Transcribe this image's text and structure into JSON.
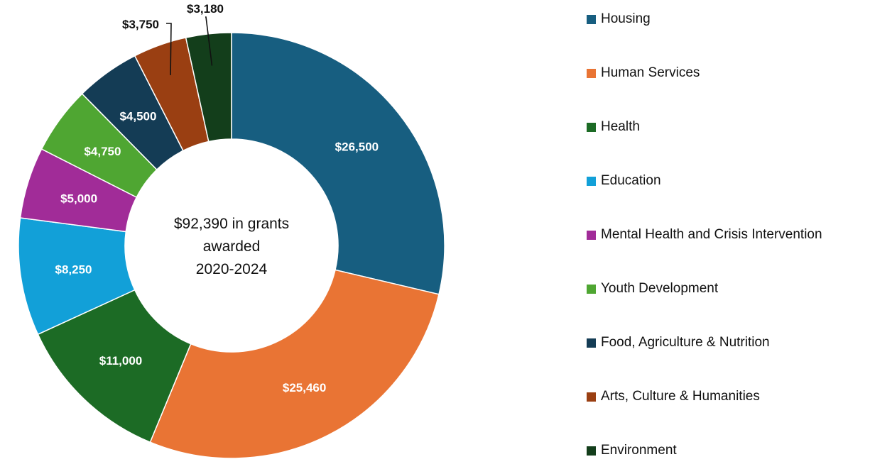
{
  "chart_data": {
    "type": "pie",
    "style": "donut",
    "center_text": [
      "$92,390 in grants",
      "awarded",
      "2020-2024"
    ],
    "legend_position": "right",
    "slices": [
      {
        "name": "Housing",
        "value": 26500,
        "label": "$26,500",
        "color": "#175e80"
      },
      {
        "name": "Human Services",
        "value": 25460,
        "label": "$25,460",
        "color": "#e97434"
      },
      {
        "name": "Health",
        "value": 11000,
        "label": "$11,000",
        "color": "#1c6b25"
      },
      {
        "name": "Education",
        "value": 8250,
        "label": "$8,250",
        "color": "#12a0d8"
      },
      {
        "name": "Mental Health and Crisis Intervention",
        "value": 5000,
        "label": "$5,000",
        "color": "#a12c98"
      },
      {
        "name": "Youth Development",
        "value": 4750,
        "label": "$4,750",
        "color": "#4fa632"
      },
      {
        "name": "Food, Agriculture & Nutrition",
        "value": 4500,
        "label": "$4,500",
        "color": "#143c55"
      },
      {
        "name": "Arts, Culture & Humanities",
        "value": 3750,
        "label": "$3,750",
        "color": "#9a3f12"
      },
      {
        "name": "Environment",
        "value": 3180,
        "label": "$3,180",
        "color": "#133e1b"
      }
    ]
  }
}
